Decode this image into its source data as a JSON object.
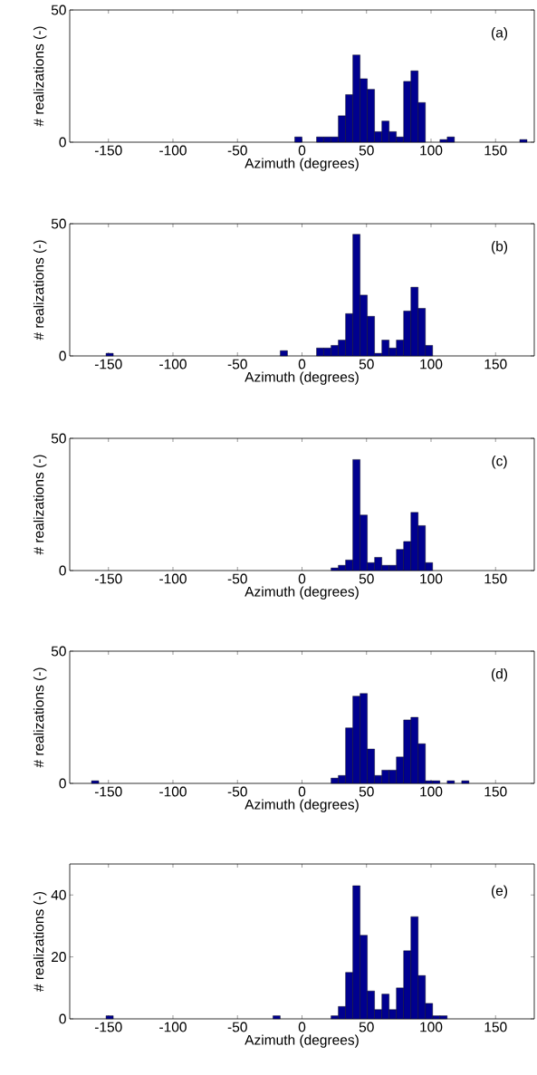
{
  "chart_data": [
    {
      "type": "histogram",
      "xlabel": "Azimuth (degrees)",
      "ylabel": "# realizations (-)",
      "annotations": [
        "(a)"
      ],
      "color": "#00008f",
      "xlim": [
        -180,
        180
      ],
      "ylim": [
        0,
        50
      ],
      "xticks": [
        -150,
        -100,
        -50,
        0,
        50,
        100,
        150
      ],
      "yticks": [
        0,
        50
      ],
      "bins": [
        -180,
        -174.375,
        -168.75,
        -163.125,
        -157.5,
        -151.875,
        -146.25,
        -140.625,
        -135,
        -129.375,
        -123.75,
        -118.125,
        -112.5,
        -106.875,
        -101.25,
        -95.625,
        -90,
        -84.375,
        -78.75,
        -73.125,
        -67.5,
        -61.875,
        -56.25,
        -50.625,
        -45,
        -39.375,
        -33.75,
        -28.125,
        -22.5,
        -16.875,
        -11.25,
        -5.625,
        0,
        5.625,
        11.25,
        16.875,
        22.5,
        28.125,
        33.75,
        39.375,
        45,
        50.625,
        56.25,
        61.875,
        67.5,
        73.125,
        78.75,
        84.375,
        90,
        95.625,
        101.25,
        106.875,
        112.5,
        118.125,
        123.75,
        129.375,
        135,
        140.625,
        146.25,
        151.875,
        157.5,
        163.125,
        168.75,
        174.375,
        180
      ],
      "values": [
        0,
        0,
        0,
        0,
        0,
        0,
        0,
        0,
        0,
        0,
        0,
        0,
        0,
        0,
        0,
        0,
        0,
        0,
        0,
        0,
        0,
        0,
        0,
        0,
        0,
        0,
        0,
        0,
        0,
        0,
        0,
        2,
        0,
        0,
        2,
        2,
        2,
        10,
        18,
        33,
        24,
        20,
        4,
        8,
        4,
        2,
        23,
        27,
        15,
        0,
        0,
        1,
        2,
        0,
        0,
        0,
        0,
        0,
        0,
        0,
        0,
        0,
        1,
        0
      ]
    },
    {
      "type": "histogram",
      "xlabel": "Azimuth (degrees)",
      "ylabel": "# realizations (-)",
      "annotations": [
        "(b)"
      ],
      "color": "#00008f",
      "xlim": [
        -180,
        180
      ],
      "ylim": [
        0,
        50
      ],
      "xticks": [
        -150,
        -100,
        -50,
        0,
        50,
        100,
        150
      ],
      "yticks": [
        0,
        50
      ],
      "bins": [
        -180,
        -174.375,
        -168.75,
        -163.125,
        -157.5,
        -151.875,
        -146.25,
        -140.625,
        -135,
        -129.375,
        -123.75,
        -118.125,
        -112.5,
        -106.875,
        -101.25,
        -95.625,
        -90,
        -84.375,
        -78.75,
        -73.125,
        -67.5,
        -61.875,
        -56.25,
        -50.625,
        -45,
        -39.375,
        -33.75,
        -28.125,
        -22.5,
        -16.875,
        -11.25,
        -5.625,
        0,
        5.625,
        11.25,
        16.875,
        22.5,
        28.125,
        33.75,
        39.375,
        45,
        50.625,
        56.25,
        61.875,
        67.5,
        73.125,
        78.75,
        84.375,
        90,
        95.625,
        101.25,
        106.875,
        112.5,
        118.125,
        123.75,
        129.375,
        135,
        140.625,
        146.25,
        151.875,
        157.5,
        163.125,
        168.75,
        174.375,
        180
      ],
      "values": [
        0,
        0,
        0,
        0,
        0,
        1,
        0,
        0,
        0,
        0,
        0,
        0,
        0,
        0,
        0,
        0,
        0,
        0,
        0,
        0,
        0,
        0,
        0,
        0,
        0,
        0,
        0,
        0,
        0,
        2,
        0,
        0,
        0,
        0,
        3,
        3,
        4,
        6,
        16,
        46,
        23,
        15,
        1,
        6,
        3,
        6,
        17,
        26,
        18,
        4,
        0,
        0,
        0,
        0,
        0,
        0,
        0,
        0,
        0,
        0,
        0,
        0,
        0,
        0
      ]
    },
    {
      "type": "histogram",
      "xlabel": "Azimuth (degrees)",
      "ylabel": "# realizations (-)",
      "annotations": [
        "(c)"
      ],
      "color": "#00008f",
      "xlim": [
        -180,
        180
      ],
      "ylim": [
        0,
        50
      ],
      "xticks": [
        -150,
        -100,
        -50,
        0,
        50,
        100,
        150
      ],
      "yticks": [
        0,
        50
      ],
      "bins": [
        -180,
        -174.375,
        -168.75,
        -163.125,
        -157.5,
        -151.875,
        -146.25,
        -140.625,
        -135,
        -129.375,
        -123.75,
        -118.125,
        -112.5,
        -106.875,
        -101.25,
        -95.625,
        -90,
        -84.375,
        -78.75,
        -73.125,
        -67.5,
        -61.875,
        -56.25,
        -50.625,
        -45,
        -39.375,
        -33.75,
        -28.125,
        -22.5,
        -16.875,
        -11.25,
        -5.625,
        0,
        5.625,
        11.25,
        16.875,
        22.5,
        28.125,
        33.75,
        39.375,
        45,
        50.625,
        56.25,
        61.875,
        67.5,
        73.125,
        78.75,
        84.375,
        90,
        95.625,
        101.25,
        106.875,
        112.5,
        118.125,
        123.75,
        129.375,
        135,
        140.625,
        146.25,
        151.875,
        157.5,
        163.125,
        168.75,
        174.375,
        180
      ],
      "values": [
        0,
        0,
        0,
        0,
        0,
        0,
        0,
        0,
        0,
        0,
        0,
        0,
        0,
        0,
        0,
        0,
        0,
        0,
        0,
        0,
        0,
        0,
        0,
        0,
        0,
        0,
        0,
        0,
        0,
        0,
        0,
        0,
        0,
        0,
        0,
        0,
        1,
        2,
        4,
        42,
        21,
        3,
        5,
        2,
        2,
        8,
        11,
        22,
        17,
        3,
        0,
        0,
        0,
        0,
        0,
        0,
        0,
        0,
        0,
        0,
        0,
        0,
        0,
        0
      ]
    },
    {
      "type": "histogram",
      "xlabel": "Azimuth (degrees)",
      "ylabel": "# realizations (-)",
      "annotations": [
        "(d)"
      ],
      "color": "#00008f",
      "xlim": [
        -180,
        180
      ],
      "ylim": [
        0,
        50
      ],
      "xticks": [
        -150,
        -100,
        -50,
        0,
        50,
        100,
        150
      ],
      "yticks": [
        0,
        50
      ],
      "bins": [
        -180,
        -174.375,
        -168.75,
        -163.125,
        -157.5,
        -151.875,
        -146.25,
        -140.625,
        -135,
        -129.375,
        -123.75,
        -118.125,
        -112.5,
        -106.875,
        -101.25,
        -95.625,
        -90,
        -84.375,
        -78.75,
        -73.125,
        -67.5,
        -61.875,
        -56.25,
        -50.625,
        -45,
        -39.375,
        -33.75,
        -28.125,
        -22.5,
        -16.875,
        -11.25,
        -5.625,
        0,
        5.625,
        11.25,
        16.875,
        22.5,
        28.125,
        33.75,
        39.375,
        45,
        50.625,
        56.25,
        61.875,
        67.5,
        73.125,
        78.75,
        84.375,
        90,
        95.625,
        101.25,
        106.875,
        112.5,
        118.125,
        123.75,
        129.375,
        135,
        140.625,
        146.25,
        151.875,
        157.5,
        163.125,
        168.75,
        174.375,
        180
      ],
      "values": [
        0,
        0,
        0,
        1,
        0,
        0,
        0,
        0,
        0,
        0,
        0,
        0,
        0,
        0,
        0,
        0,
        0,
        0,
        0,
        0,
        0,
        0,
        0,
        0,
        0,
        0,
        0,
        0,
        0,
        0,
        0,
        0,
        0,
        0,
        0,
        0,
        2,
        3,
        21,
        33,
        34,
        13,
        3,
        5,
        5,
        10,
        24,
        25,
        15,
        1,
        1,
        0,
        1,
        0,
        1,
        0,
        0,
        0,
        0,
        0,
        0,
        0,
        0,
        0
      ]
    },
    {
      "type": "histogram",
      "xlabel": "Azimuth (degrees)",
      "ylabel": "# realizations (-)",
      "annotations": [
        "(e)"
      ],
      "color": "#00008f",
      "xlim": [
        -180,
        180
      ],
      "ylim": [
        0,
        50
      ],
      "xticks": [
        -150,
        -100,
        -50,
        0,
        50,
        100,
        150
      ],
      "yticks": [
        0,
        20,
        40
      ],
      "bins": [
        -180,
        -174.375,
        -168.75,
        -163.125,
        -157.5,
        -151.875,
        -146.25,
        -140.625,
        -135,
        -129.375,
        -123.75,
        -118.125,
        -112.5,
        -106.875,
        -101.25,
        -95.625,
        -90,
        -84.375,
        -78.75,
        -73.125,
        -67.5,
        -61.875,
        -56.25,
        -50.625,
        -45,
        -39.375,
        -33.75,
        -28.125,
        -22.5,
        -16.875,
        -11.25,
        -5.625,
        0,
        5.625,
        11.25,
        16.875,
        22.5,
        28.125,
        33.75,
        39.375,
        45,
        50.625,
        56.25,
        61.875,
        67.5,
        73.125,
        78.75,
        84.375,
        90,
        95.625,
        101.25,
        106.875,
        112.5,
        118.125,
        123.75,
        129.375,
        135,
        140.625,
        146.25,
        151.875,
        157.5,
        163.125,
        168.75,
        174.375,
        180
      ],
      "values": [
        0,
        0,
        0,
        0,
        0,
        1,
        0,
        0,
        0,
        0,
        0,
        0,
        0,
        0,
        0,
        0,
        0,
        0,
        0,
        0,
        0,
        0,
        0,
        0,
        0,
        0,
        0,
        0,
        1,
        0,
        0,
        0,
        0,
        0,
        0,
        0,
        1,
        4,
        15,
        43,
        27,
        9,
        3,
        8,
        3,
        10,
        22,
        33,
        14,
        5,
        1,
        1,
        0,
        0,
        0,
        0,
        0,
        0,
        0,
        0,
        0,
        0,
        0,
        0
      ]
    }
  ]
}
